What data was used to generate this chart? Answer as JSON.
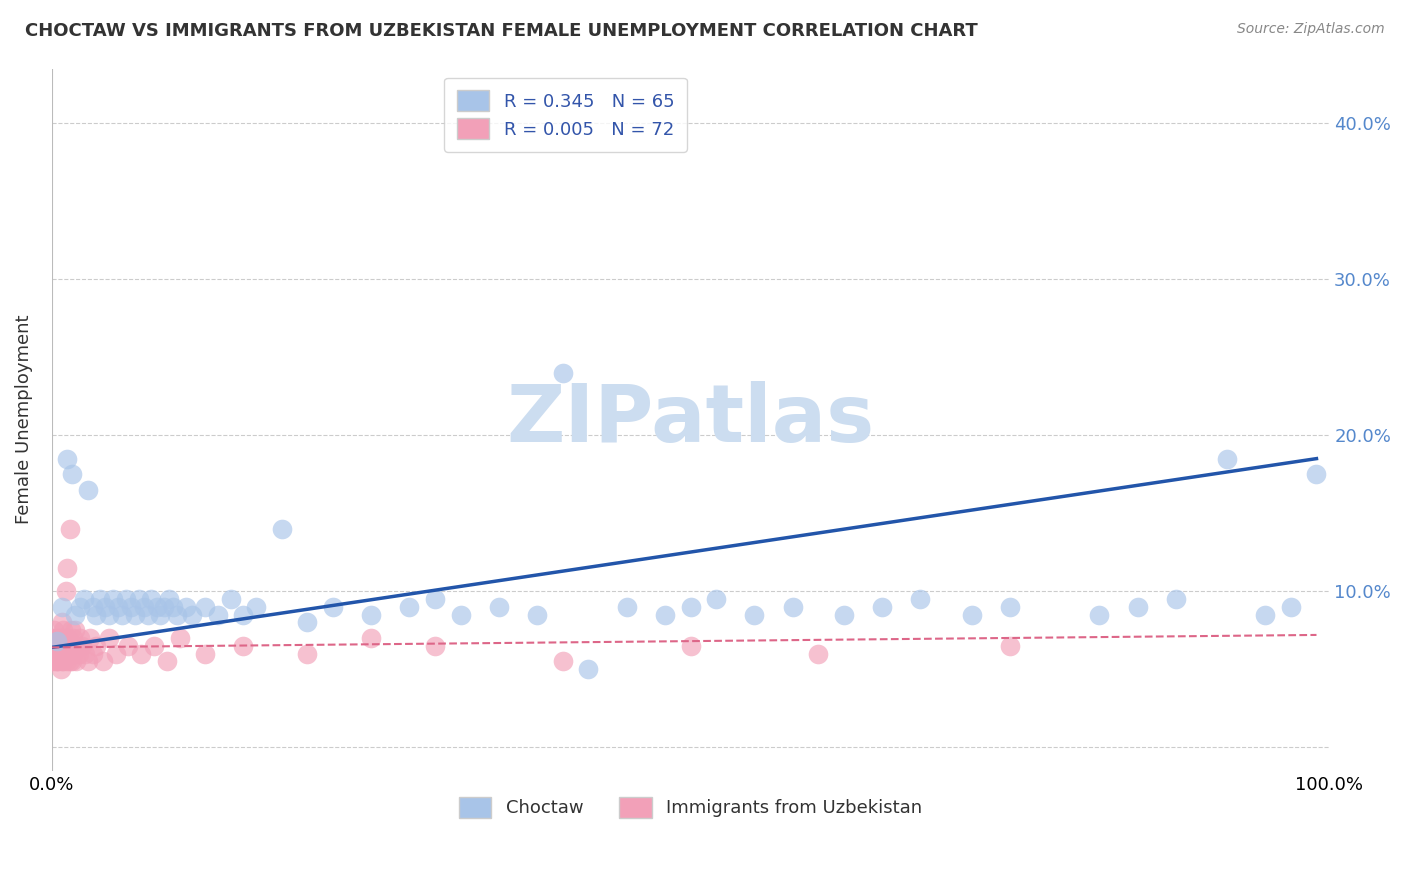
{
  "title": "CHOCTAW VS IMMIGRANTS FROM UZBEKISTAN FEMALE UNEMPLOYMENT CORRELATION CHART",
  "source": "Source: ZipAtlas.com",
  "ylabel": "Female Unemployment",
  "xlim": [
    0,
    1.0
  ],
  "ylim": [
    -0.015,
    0.435
  ],
  "yticks": [
    0.0,
    0.1,
    0.2,
    0.3,
    0.4
  ],
  "ytick_labels": [
    "",
    "10.0%",
    "20.0%",
    "30.0%",
    "40.0%"
  ],
  "xtick_labels": [
    "0.0%",
    "100.0%"
  ],
  "legend_r1": "R = 0.345   N = 65",
  "legend_r2": "R = 0.005   N = 72",
  "legend_label1": "Choctaw",
  "legend_label2": "Immigrants from Uzbekistan",
  "color_blue": "#a8c4e8",
  "color_pink": "#f2a0b8",
  "trend_blue": "#2255aa",
  "trend_pink": "#dd6688",
  "watermark": "ZIPatlas",
  "watermark_color": "#ccddf0",
  "blue_x": [
    0.004,
    0.008,
    0.012,
    0.016,
    0.018,
    0.022,
    0.025,
    0.028,
    0.032,
    0.035,
    0.038,
    0.042,
    0.045,
    0.048,
    0.052,
    0.055,
    0.058,
    0.062,
    0.065,
    0.068,
    0.072,
    0.075,
    0.078,
    0.082,
    0.085,
    0.088,
    0.092,
    0.095,
    0.098,
    0.105,
    0.11,
    0.12,
    0.13,
    0.14,
    0.15,
    0.16,
    0.18,
    0.2,
    0.22,
    0.25,
    0.28,
    0.3,
    0.32,
    0.35,
    0.38,
    0.4,
    0.42,
    0.45,
    0.48,
    0.5,
    0.52,
    0.55,
    0.58,
    0.62,
    0.65,
    0.68,
    0.72,
    0.75,
    0.82,
    0.85,
    0.88,
    0.92,
    0.95,
    0.97,
    0.99
  ],
  "blue_y": [
    0.068,
    0.09,
    0.185,
    0.175,
    0.085,
    0.09,
    0.095,
    0.165,
    0.09,
    0.085,
    0.095,
    0.09,
    0.085,
    0.095,
    0.09,
    0.085,
    0.095,
    0.09,
    0.085,
    0.095,
    0.09,
    0.085,
    0.095,
    0.09,
    0.085,
    0.09,
    0.095,
    0.09,
    0.085,
    0.09,
    0.085,
    0.09,
    0.085,
    0.095,
    0.085,
    0.09,
    0.14,
    0.08,
    0.09,
    0.085,
    0.09,
    0.095,
    0.085,
    0.09,
    0.085,
    0.24,
    0.05,
    0.09,
    0.085,
    0.09,
    0.095,
    0.085,
    0.09,
    0.085,
    0.09,
    0.095,
    0.085,
    0.09,
    0.085,
    0.09,
    0.095,
    0.185,
    0.085,
    0.09,
    0.175
  ],
  "pink_x": [
    0.001,
    0.001,
    0.001,
    0.002,
    0.002,
    0.002,
    0.003,
    0.003,
    0.003,
    0.004,
    0.004,
    0.004,
    0.005,
    0.005,
    0.005,
    0.006,
    0.006,
    0.006,
    0.007,
    0.007,
    0.007,
    0.008,
    0.008,
    0.008,
    0.009,
    0.009,
    0.009,
    0.01,
    0.01,
    0.011,
    0.011,
    0.012,
    0.012,
    0.013,
    0.013,
    0.014,
    0.014,
    0.015,
    0.015,
    0.016,
    0.016,
    0.017,
    0.017,
    0.018,
    0.018,
    0.019,
    0.02,
    0.021,
    0.022,
    0.024,
    0.026,
    0.028,
    0.03,
    0.032,
    0.035,
    0.04,
    0.045,
    0.05,
    0.06,
    0.07,
    0.08,
    0.09,
    0.1,
    0.12,
    0.15,
    0.2,
    0.25,
    0.3,
    0.4,
    0.5,
    0.6,
    0.75
  ],
  "pink_y": [
    0.065,
    0.07,
    0.055,
    0.06,
    0.075,
    0.065,
    0.055,
    0.07,
    0.06,
    0.065,
    0.055,
    0.07,
    0.06,
    0.065,
    0.055,
    0.07,
    0.06,
    0.065,
    0.05,
    0.07,
    0.06,
    0.08,
    0.055,
    0.065,
    0.075,
    0.06,
    0.055,
    0.07,
    0.06,
    0.065,
    0.1,
    0.115,
    0.055,
    0.07,
    0.06,
    0.14,
    0.055,
    0.065,
    0.075,
    0.06,
    0.055,
    0.07,
    0.06,
    0.065,
    0.075,
    0.055,
    0.065,
    0.06,
    0.07,
    0.065,
    0.06,
    0.055,
    0.07,
    0.06,
    0.065,
    0.055,
    0.07,
    0.06,
    0.065,
    0.06,
    0.065,
    0.055,
    0.07,
    0.06,
    0.065,
    0.06,
    0.07,
    0.065,
    0.055,
    0.065,
    0.06,
    0.065
  ],
  "blue_trend_x": [
    0.0,
    0.99
  ],
  "blue_trend_y": [
    0.064,
    0.185
  ],
  "pink_trend_x": [
    0.0,
    0.99
  ],
  "pink_trend_y": [
    0.064,
    0.072
  ]
}
